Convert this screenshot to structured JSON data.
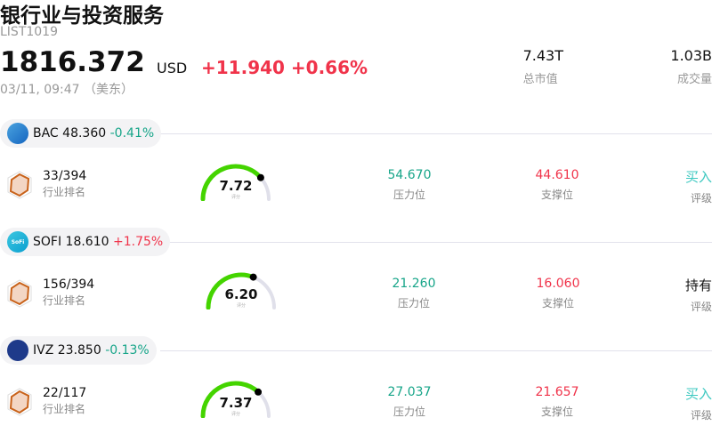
{
  "header": {
    "title": "银行业与投资服务",
    "code": "LIST1019",
    "price": "1816.372",
    "currency": "USD",
    "change": "+11.940",
    "change_pct": "+0.66%",
    "time": "03/11, 09:47 （美东）"
  },
  "stats": [
    {
      "value": "7.43T",
      "label": "总市值"
    },
    {
      "value": "1.03B",
      "label": "成交量"
    }
  ],
  "colors": {
    "up": "#f0334a",
    "down": "#17a589",
    "gauge": "#44d400",
    "gauge_track": "#e0e0ea"
  },
  "stocks": [
    {
      "ticker": "BAC",
      "price": "48.360",
      "change": "-0.41%",
      "dir": "down",
      "logo": "bank-of-america-logo",
      "rank": "33/394",
      "rank_label": "行业排名",
      "score": "7.72",
      "score_value": 7.72,
      "score_label": "评分",
      "resistance": "54.670",
      "resistance_label": "压力位",
      "support": "44.610",
      "support_label": "支撑位",
      "rating": "买入",
      "rating_color": "#3cc8c0",
      "rating_label": "评级"
    },
    {
      "ticker": "SOFI",
      "price": "18.610",
      "change": "+1.75%",
      "dir": "up",
      "logo": "sofi-logo",
      "logo_text": "SoFi",
      "rank": "156/394",
      "rank_label": "行业排名",
      "score": "6.20",
      "score_value": 6.2,
      "score_label": "评分",
      "resistance": "21.260",
      "resistance_label": "压力位",
      "support": "16.060",
      "support_label": "支撑位",
      "rating": "持有",
      "rating_color": "#111111",
      "rating_label": "评级"
    },
    {
      "ticker": "IVZ",
      "price": "23.850",
      "change": "-0.13%",
      "dir": "down",
      "logo": "invesco-logo",
      "rank": "22/117",
      "rank_label": "行业排名",
      "score": "7.37",
      "score_value": 7.37,
      "score_label": "评分",
      "resistance": "27.037",
      "resistance_label": "压力位",
      "support": "21.657",
      "support_label": "支撑位",
      "rating": "买入",
      "rating_color": "#3cc8c0",
      "rating_label": "评级"
    }
  ]
}
